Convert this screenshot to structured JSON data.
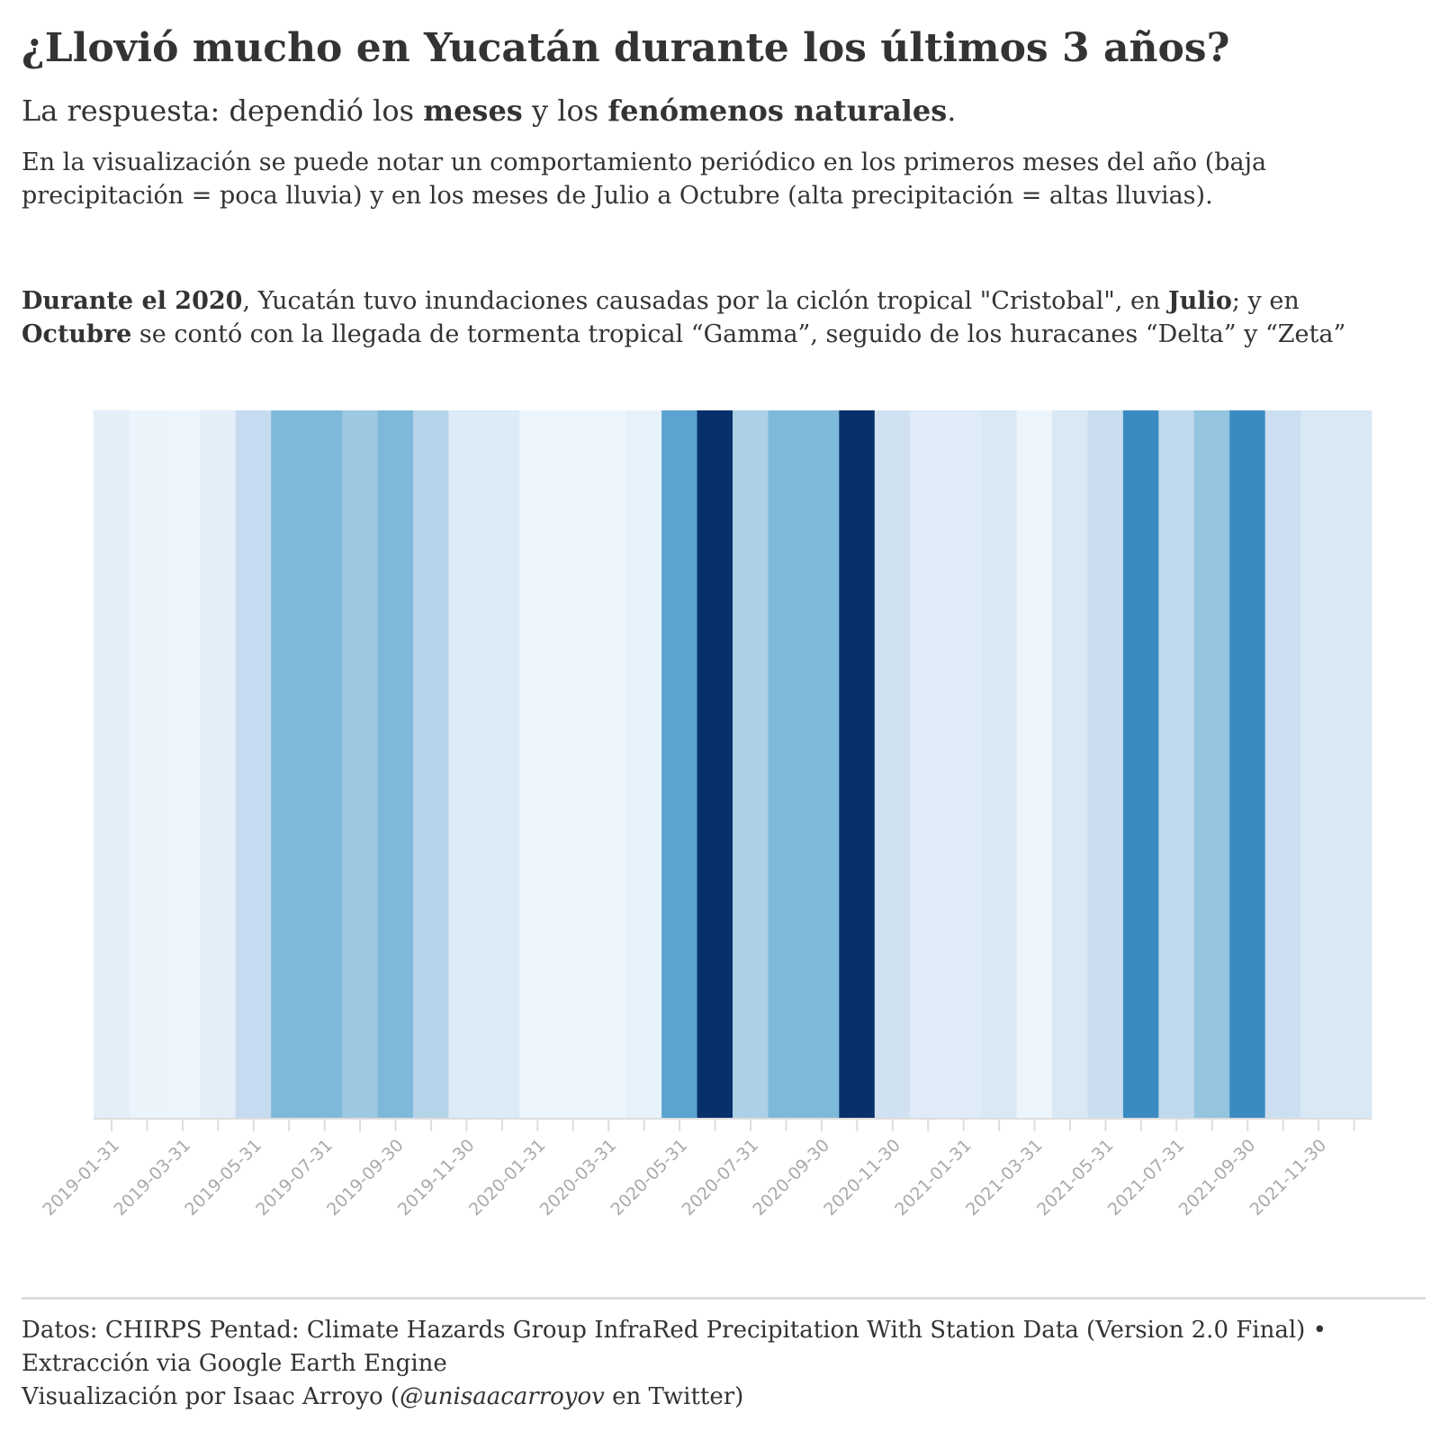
{
  "title": "¿Llovió mucho en Yucatán durante los últimos 3 años?",
  "subtitle": {
    "t1": "La respuesta: dependió los ",
    "b1": "meses",
    "t2": " y los ",
    "b2": "fenómenos naturales",
    "t3": "."
  },
  "description": "En la visualización se puede notar un comportamiento periódico en los primeros meses del año (baja precipitación = poca lluvia) y en los meses de Julio a Octubre (alta precipitación = altas lluvias).",
  "note": {
    "b1": "Durante el 2020",
    "t1": ", Yucatán tuvo inundaciones causadas por la ciclón tropical \"Cristobal\", en ",
    "b2": "Julio",
    "t2": "; y en ",
    "b3": "Octubre",
    "t3": " se contó con la llegada de tormenta tropical “Gamma”, seguido de los huracanes “Delta” y “Zeta”"
  },
  "footer": {
    "line1": "Datos: CHIRPS Pentad: Climate Hazards Group InfraRed Precipitation With Station Data (Version 2.0 Final) • Extracción via Google Earth Engine",
    "line2_before": "Visualización por Isaac Arroyo (",
    "line2_handle": "@unisaacarroyov",
    "line2_after": " en Twitter)"
  },
  "chart_data": {
    "type": "heatmap",
    "color_scale": "Blues",
    "axis_color": "#dddddd",
    "tick_label_color": "#aaaaaa",
    "x": [
      "2019-01-31",
      "2019-02-28",
      "2019-03-31",
      "2019-04-30",
      "2019-05-31",
      "2019-06-30",
      "2019-07-31",
      "2019-08-31",
      "2019-09-30",
      "2019-10-31",
      "2019-11-30",
      "2019-12-31",
      "2020-01-31",
      "2020-02-29",
      "2020-03-31",
      "2020-04-30",
      "2020-05-31",
      "2020-06-30",
      "2020-07-31",
      "2020-08-31",
      "2020-09-30",
      "2020-10-31",
      "2020-11-30",
      "2020-12-31",
      "2021-01-31",
      "2021-02-28",
      "2021-03-31",
      "2021-04-30",
      "2021-05-31",
      "2021-06-30",
      "2021-07-31",
      "2021-08-31",
      "2021-09-30",
      "2021-10-31",
      "2021-11-30",
      "2021-12-31"
    ],
    "values": [
      0.1,
      0.06,
      0.05,
      0.1,
      0.25,
      0.45,
      0.45,
      0.38,
      0.45,
      0.3,
      0.13,
      0.13,
      0.05,
      0.05,
      0.05,
      0.08,
      0.55,
      1.0,
      0.33,
      0.45,
      0.45,
      1.0,
      0.2,
      0.12,
      0.12,
      0.15,
      0.05,
      0.15,
      0.23,
      0.65,
      0.27,
      0.4,
      0.65,
      0.22,
      0.15,
      0.15
    ],
    "tick_labels": [
      "2019-01-31",
      "2019-03-31",
      "2019-05-31",
      "2019-07-31",
      "2019-09-30",
      "2019-11-30",
      "2020-01-31",
      "2020-03-31",
      "2020-05-31",
      "2020-07-31",
      "2020-09-30",
      "2020-11-30",
      "2021-01-31",
      "2021-03-31",
      "2021-05-31",
      "2021-07-31",
      "2021-09-30",
      "2021-11-30"
    ]
  }
}
